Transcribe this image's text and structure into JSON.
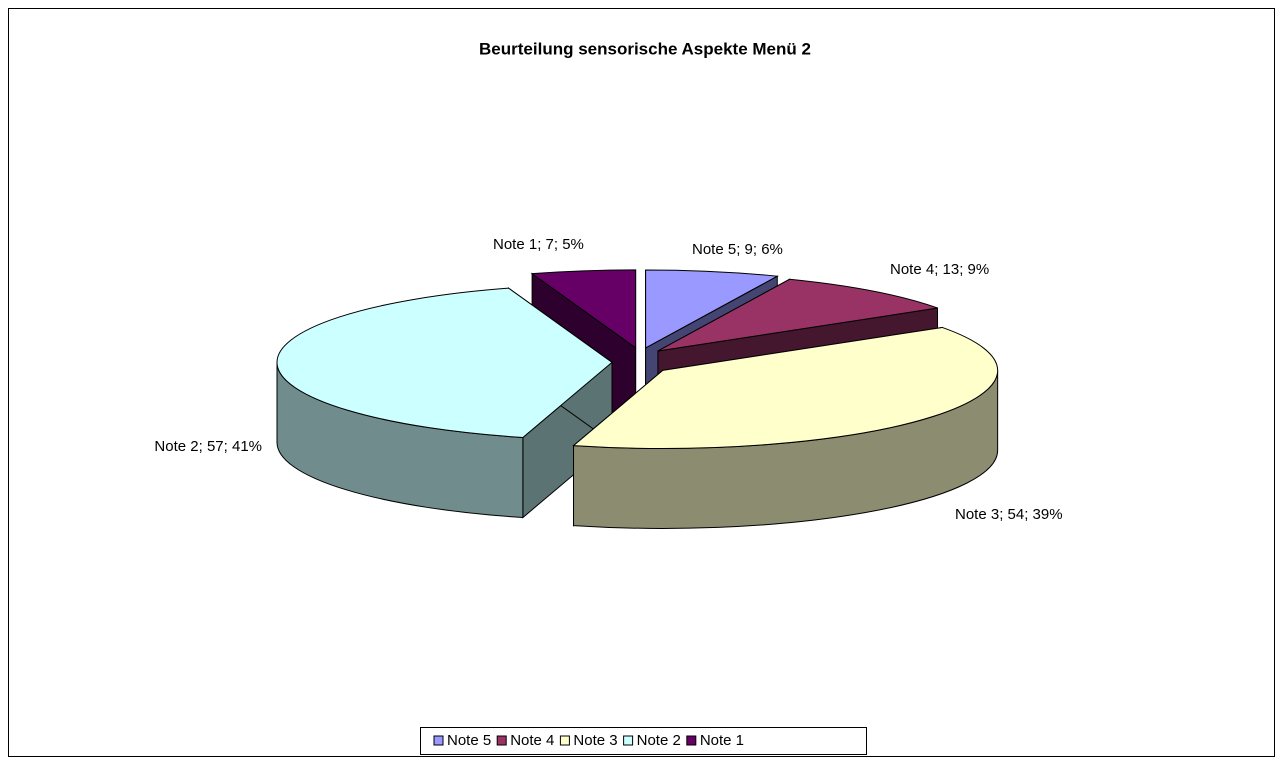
{
  "chart_data": {
    "type": "pie3d",
    "title": "Beurteilung  sensorische Aspekte Menü 2",
    "categories": [
      "Note 5",
      "Note 4",
      "Note 3",
      "Note 2",
      "Note 1"
    ],
    "values": [
      9,
      13,
      54,
      57,
      7
    ],
    "value_labels": [
      "Note 5; 9; 6%",
      "Note 4; 13; 9%",
      "Note 3; 54; 39%",
      "Note 2; 57; 41%",
      "Note 1; 7; 5%"
    ],
    "colors": [
      "#9999ff",
      "#993366",
      "#ffffcc",
      "#ccffff",
      "#660066"
    ],
    "legend": "bottom"
  }
}
